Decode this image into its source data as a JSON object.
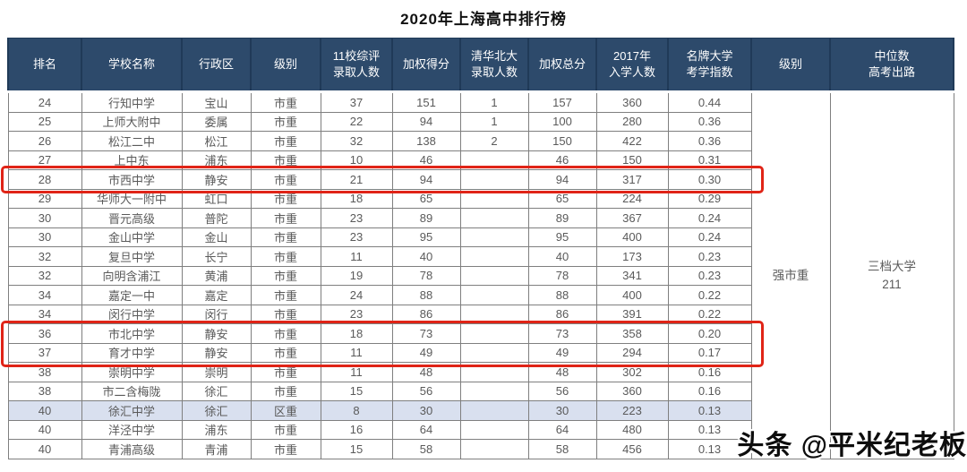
{
  "title": "2020年上海高中排行榜",
  "watermark": "头条 @平米纪老板",
  "colors": {
    "header_bg": "#2d4a6b",
    "header_text": "#ffffff",
    "body_text": "#5a5a5a",
    "grid_line": "#7f7f7f",
    "highlight_row_bg": "#d9e0ef",
    "highlight_box_red": "#e02417"
  },
  "table": {
    "columns": [
      "排名",
      "学校名称",
      "行政区",
      "级别",
      "11校综评\n录取人数",
      "加权得分",
      "清华北大\n录取人数",
      "加权总分",
      "2017年\n入学人数",
      "名牌大学\n考学指数",
      "级别",
      "中位数\n高考出路"
    ],
    "merged": {
      "level": "强市重",
      "median_outcome": "三档大学\n211"
    },
    "rows": [
      {
        "cells": [
          "24",
          "行知中学",
          "宝山",
          "市重",
          "37",
          "151",
          "1",
          "157",
          "360",
          "0.44"
        ],
        "highlight": ""
      },
      {
        "cells": [
          "25",
          "上师大附中",
          "委属",
          "市重",
          "22",
          "94",
          "1",
          "100",
          "280",
          "0.36"
        ],
        "highlight": ""
      },
      {
        "cells": [
          "26",
          "松江二中",
          "松江",
          "市重",
          "32",
          "138",
          "2",
          "150",
          "422",
          "0.36"
        ],
        "highlight": ""
      },
      {
        "cells": [
          "27",
          "上中东",
          "浦东",
          "市重",
          "10",
          "46",
          "",
          "46",
          "150",
          "0.31"
        ],
        "highlight": ""
      },
      {
        "cells": [
          "28",
          "市西中学",
          "静安",
          "市重",
          "21",
          "94",
          "",
          "94",
          "317",
          "0.30"
        ],
        "highlight": "red-box"
      },
      {
        "cells": [
          "29",
          "华师大一附中",
          "虹口",
          "市重",
          "18",
          "65",
          "",
          "65",
          "224",
          "0.29"
        ],
        "highlight": ""
      },
      {
        "cells": [
          "30",
          "晋元高级",
          "普陀",
          "市重",
          "23",
          "89",
          "",
          "89",
          "367",
          "0.24"
        ],
        "highlight": ""
      },
      {
        "cells": [
          "30",
          "金山中学",
          "金山",
          "市重",
          "23",
          "95",
          "",
          "95",
          "400",
          "0.24"
        ],
        "highlight": ""
      },
      {
        "cells": [
          "32",
          "复旦中学",
          "长宁",
          "市重",
          "11",
          "40",
          "",
          "40",
          "173",
          "0.23"
        ],
        "highlight": ""
      },
      {
        "cells": [
          "32",
          "向明含浦江",
          "黄浦",
          "市重",
          "19",
          "78",
          "",
          "78",
          "341",
          "0.23"
        ],
        "highlight": ""
      },
      {
        "cells": [
          "34",
          "嘉定一中",
          "嘉定",
          "市重",
          "24",
          "88",
          "",
          "88",
          "400",
          "0.22"
        ],
        "highlight": ""
      },
      {
        "cells": [
          "34",
          "闵行中学",
          "闵行",
          "市重",
          "23",
          "86",
          "",
          "86",
          "391",
          "0.22"
        ],
        "highlight": ""
      },
      {
        "cells": [
          "36",
          "市北中学",
          "静安",
          "市重",
          "18",
          "73",
          "",
          "73",
          "358",
          "0.20"
        ],
        "highlight": "red-box"
      },
      {
        "cells": [
          "37",
          "育才中学",
          "静安",
          "市重",
          "11",
          "49",
          "",
          "49",
          "294",
          "0.17"
        ],
        "highlight": "red-box"
      },
      {
        "cells": [
          "38",
          "崇明中学",
          "崇明",
          "市重",
          "11",
          "48",
          "",
          "48",
          "302",
          "0.16"
        ],
        "highlight": ""
      },
      {
        "cells": [
          "38",
          "市二含梅陇",
          "徐汇",
          "市重",
          "15",
          "56",
          "",
          "56",
          "360",
          "0.16"
        ],
        "highlight": ""
      },
      {
        "cells": [
          "40",
          "徐汇中学",
          "徐汇",
          "区重",
          "8",
          "30",
          "",
          "30",
          "223",
          "0.13"
        ],
        "highlight": "blue-row"
      },
      {
        "cells": [
          "40",
          "洋泾中学",
          "浦东",
          "市重",
          "16",
          "64",
          "",
          "64",
          "480",
          "0.13"
        ],
        "highlight": ""
      },
      {
        "cells": [
          "40",
          "青浦高级",
          "青浦",
          "市重",
          "15",
          "58",
          "",
          "58",
          "456",
          "0.13"
        ],
        "highlight": ""
      }
    ]
  }
}
